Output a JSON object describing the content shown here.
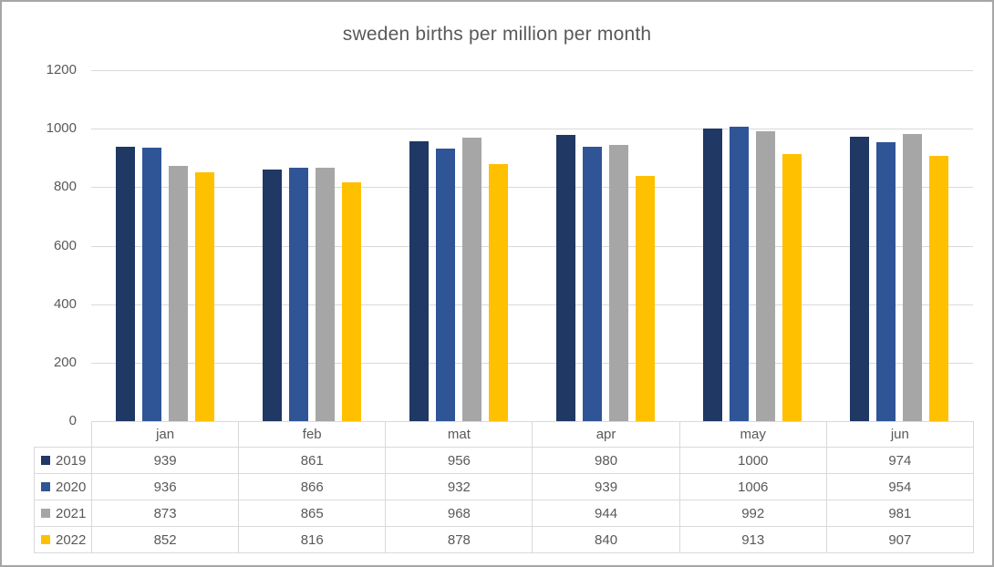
{
  "window": {
    "background": "#ffffff",
    "border_color": "#a6a6a6",
    "text_color": "#595959",
    "gridline_color": "#d9d9d9",
    "table_border_color": "#d9d9d9"
  },
  "chart_data": {
    "type": "bar",
    "title": "sweden births per million per month",
    "xlabel": "",
    "ylabel": "",
    "categories": [
      "jan",
      "feb",
      "mat",
      "apr",
      "may",
      "jun"
    ],
    "series": [
      {
        "name": "2019",
        "color": "#1f3864",
        "values": [
          939,
          861,
          956,
          980,
          1000,
          974
        ]
      },
      {
        "name": "2020",
        "color": "#2f5597",
        "values": [
          936,
          866,
          932,
          939,
          1006,
          954
        ]
      },
      {
        "name": "2021",
        "color": "#a6a6a6",
        "values": [
          873,
          865,
          968,
          944,
          992,
          981
        ]
      },
      {
        "name": "2022",
        "color": "#ffc000",
        "values": [
          852,
          816,
          878,
          840,
          913,
          907
        ]
      }
    ],
    "ylim": [
      0,
      1200
    ],
    "yticks": [
      0,
      200,
      400,
      600,
      800,
      1000,
      1200
    ],
    "grid": true,
    "grid_axis": "y",
    "legend_position": "table-left",
    "data_table_shown": true
  }
}
